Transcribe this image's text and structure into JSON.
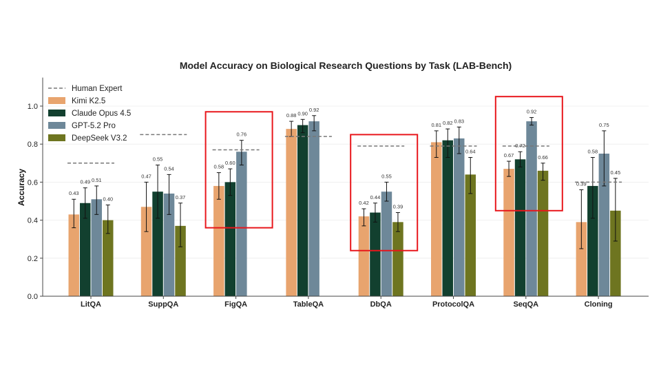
{
  "chart_data": {
    "type": "bar",
    "title": "Model Accuracy on Biological Research Questions by Task (LAB-Bench)",
    "xlabel": "",
    "ylabel": "Accuracy",
    "ylim": [
      0,
      1.15
    ],
    "yticks": [
      "0.0",
      "0.2",
      "0.4",
      "0.6",
      "0.8",
      "1.0"
    ],
    "grid": "horizontal",
    "legend_position": "top-left",
    "categories": [
      "LitQA",
      "SuppQA",
      "FigQA",
      "TableQA",
      "DbQA",
      "ProtocolQA",
      "SeqQA",
      "Cloning"
    ],
    "human_expert": {
      "name": "Human Expert",
      "values": [
        0.7,
        0.85,
        0.77,
        0.84,
        0.79,
        0.79,
        0.79,
        0.6
      ],
      "color": "#777777"
    },
    "series": [
      {
        "name": "Kimi K2.5",
        "color": "#E8A46E",
        "values": [
          0.43,
          0.47,
          0.58,
          0.88,
          0.42,
          0.81,
          0.67,
          0.39
        ],
        "err_low": [
          0.36,
          0.34,
          0.51,
          0.84,
          0.37,
          0.73,
          0.63,
          0.25
        ],
        "err_high": [
          0.51,
          0.6,
          0.65,
          0.92,
          0.46,
          0.87,
          0.71,
          0.56
        ]
      },
      {
        "name": "Claude Opus 4.5",
        "color": "#12402F",
        "values": [
          0.49,
          0.55,
          0.6,
          0.9,
          0.44,
          0.82,
          0.72,
          0.58
        ],
        "err_low": [
          0.41,
          0.41,
          0.53,
          0.86,
          0.39,
          0.73,
          0.68,
          0.41
        ],
        "err_high": [
          0.57,
          0.69,
          0.67,
          0.93,
          0.49,
          0.88,
          0.76,
          0.73
        ]
      },
      {
        "name": "GPT-5.2 Pro",
        "color": "#6E8899",
        "values": [
          0.51,
          0.54,
          0.76,
          0.92,
          0.55,
          0.83,
          0.92,
          0.75
        ],
        "err_low": [
          0.43,
          0.43,
          0.69,
          0.87,
          0.5,
          0.75,
          0.9,
          0.58
        ],
        "err_high": [
          0.58,
          0.64,
          0.82,
          0.95,
          0.6,
          0.89,
          0.94,
          0.87
        ]
      },
      {
        "name": "DeepSeek V3.2",
        "color": "#6E7520",
        "values": [
          0.4,
          0.37,
          null,
          null,
          0.39,
          0.64,
          0.66,
          0.45
        ],
        "err_low": [
          0.33,
          0.26,
          null,
          null,
          0.34,
          0.54,
          0.61,
          0.29
        ],
        "err_high": [
          0.48,
          0.49,
          null,
          null,
          0.44,
          0.73,
          0.7,
          0.62
        ]
      }
    ],
    "highlighted_categories": [
      "FigQA",
      "DbQA",
      "SeqQA"
    ],
    "highlight_color": "#E8161B"
  }
}
